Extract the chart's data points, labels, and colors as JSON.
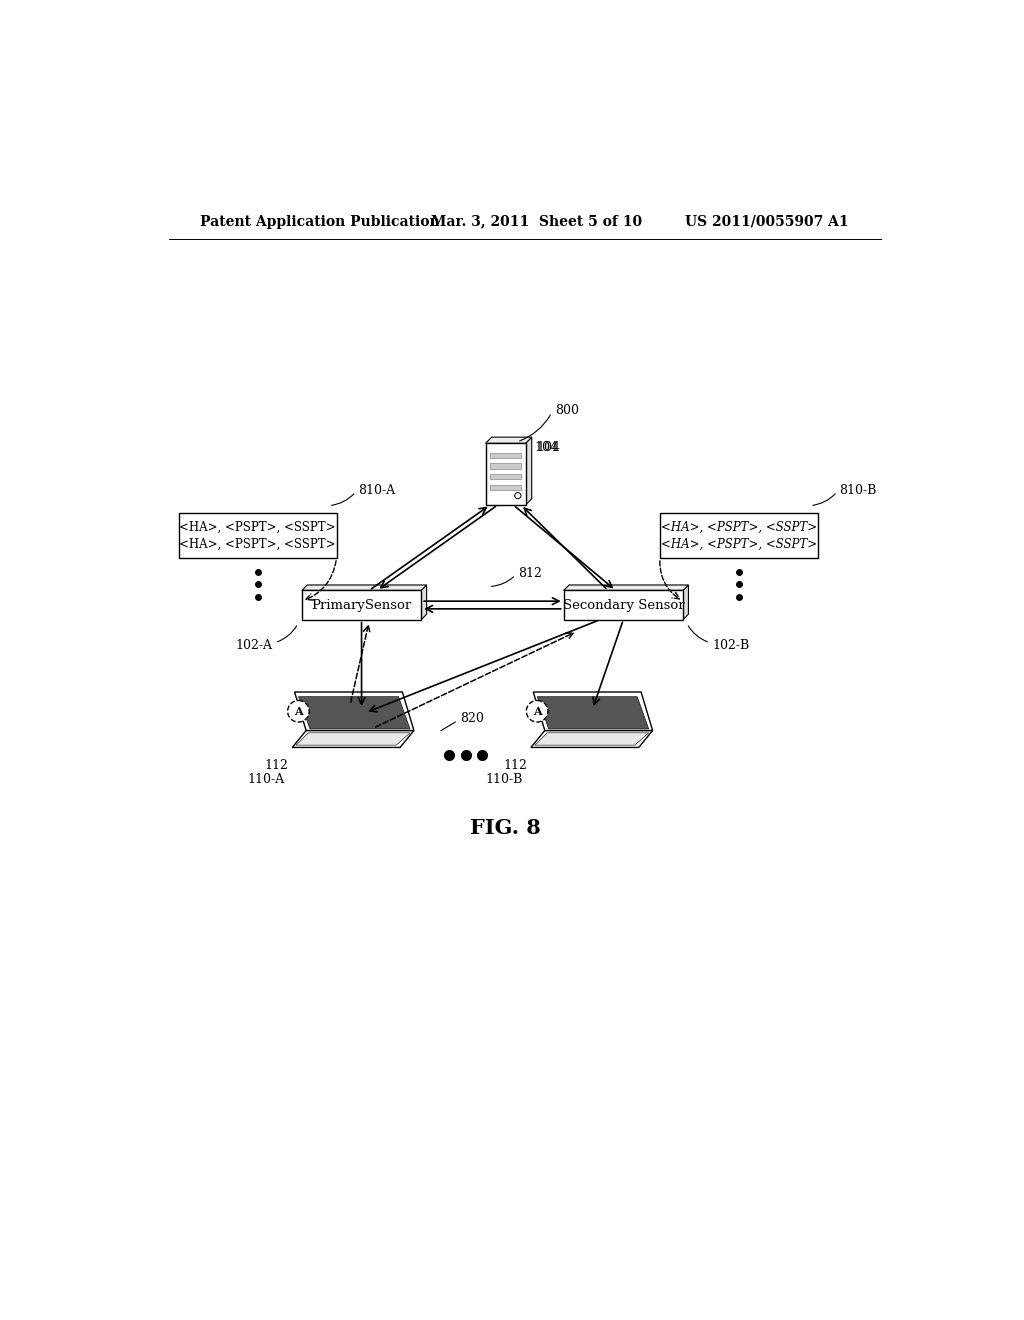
{
  "header_left": "Patent Application Publication",
  "header_mid": "Mar. 3, 2011  Sheet 5 of 10",
  "header_right": "US 2011/0055907 A1",
  "fig_label": "FIG. 8",
  "ref_800": "800",
  "ref_104": "104",
  "ref_810A": "810-A",
  "ref_810B": "810-B",
  "ref_102A": "102-A",
  "ref_102B": "102-B",
  "ref_812": "812",
  "ref_820": "820",
  "ref_112": "112",
  "ref_110A": "110-A",
  "ref_110B": "110-B",
  "box_810A_line1": "<HA>, <PSPT>, <SSPT>",
  "box_810A_line2": "<HA>, <PSPT>, <SSPT>",
  "box_810B_line1": "<HA>, <PSPT>, <SSPT>",
  "box_810B_line2": "<HA>, <PSPT>, <SSPT>",
  "primary_sensor_label": "PrimarySensor",
  "secondary_sensor_label": "Secondary Sensor",
  "background_color": "#ffffff",
  "text_color": "#000000"
}
